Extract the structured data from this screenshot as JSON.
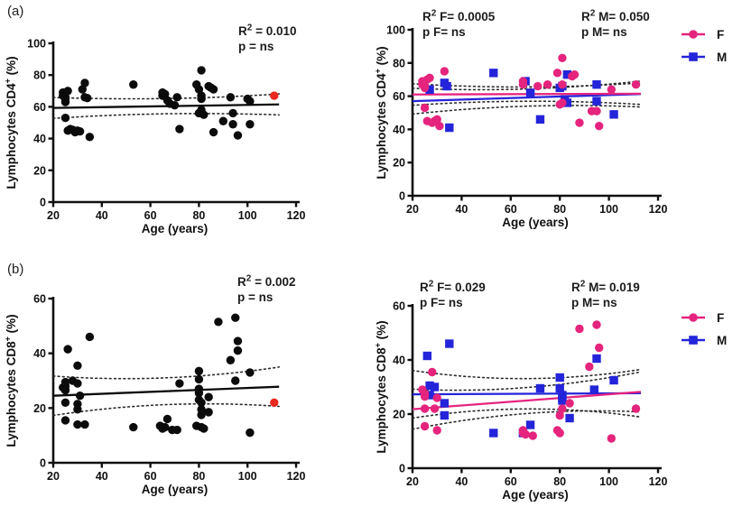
{
  "figure": {
    "panel_a_label": "(a)",
    "panel_b_label": "(b)",
    "colors": {
      "black": "#0b0b0b",
      "red": "#e9281e",
      "female": "#e5247e",
      "male": "#2424da",
      "band": "#2b2b2b",
      "axis": "#101010"
    },
    "legend": {
      "f_label": "F",
      "m_label": "M"
    }
  },
  "chart_data": [
    {
      "id": "cd4-all",
      "type": "scatter",
      "panel": "a",
      "xlabel": "Age (years)",
      "ylabel": {
        "main": "Lymphocytes CD4",
        "sup": "+",
        "rest": " (%)"
      },
      "xlim": [
        20,
        120
      ],
      "ylim": [
        0,
        100
      ],
      "xticks": [
        20,
        40,
        60,
        80,
        100,
        120
      ],
      "yticks": [
        0,
        20,
        40,
        60,
        80,
        100
      ],
      "grid": false,
      "annotations": [
        {
          "r2_pre": "R",
          "r2_sup": "2",
          "r2_rest": " = 0.010",
          "p_text": "p = ns"
        }
      ],
      "series": [
        {
          "name": "all-subjects",
          "marker": "circle",
          "color_key": "black",
          "points": [
            [
              24,
              69
            ],
            [
              24,
              67
            ],
            [
              25,
              66
            ],
            [
              25,
              65
            ],
            [
              25,
              63
            ],
            [
              25,
              53
            ],
            [
              26,
              70
            ],
            [
              26,
              45
            ],
            [
              27,
              46
            ],
            [
              28,
              45.5
            ],
            [
              29,
              44
            ],
            [
              30,
              45
            ],
            [
              31,
              44.5
            ],
            [
              32,
              71
            ],
            [
              33,
              75
            ],
            [
              33,
              66
            ],
            [
              34,
              65.5
            ],
            [
              35,
              41
            ],
            [
              53,
              74
            ],
            [
              65,
              69
            ],
            [
              65,
              67
            ],
            [
              66,
              68
            ],
            [
              67,
              64
            ],
            [
              68,
              62
            ],
            [
              70,
              61
            ],
            [
              71,
              66
            ],
            [
              72,
              46
            ],
            [
              79,
              74
            ],
            [
              80,
              71
            ],
            [
              80,
              56
            ],
            [
              81,
              83
            ],
            [
              81,
              67
            ],
            [
              81,
              65
            ],
            [
              81,
              58
            ],
            [
              82,
              55
            ],
            [
              84,
              73
            ],
            [
              85,
              72
            ],
            [
              86,
              71
            ],
            [
              86,
              44
            ],
            [
              90,
              51
            ],
            [
              93,
              66
            ],
            [
              94,
              56
            ],
            [
              94,
              49
            ],
            [
              96,
              42
            ],
            [
              100,
              65
            ],
            [
              101,
              63.5
            ],
            [
              101,
              49
            ]
          ]
        },
        {
          "name": "oldest-highlight",
          "marker": "circle",
          "color_key": "red",
          "points": [
            [
              111,
              67
            ]
          ]
        }
      ],
      "fits": [
        {
          "color_key": "black",
          "x0": 20,
          "x1": 113,
          "y0": 59.3,
          "y1": 61.5,
          "band_a": 4.8,
          "band_b": 1.8
        }
      ],
      "legend": false
    },
    {
      "id": "cd4-by-sex",
      "type": "scatter",
      "panel": "a",
      "xlabel": "Age (years)",
      "ylabel": {
        "main": "Lymphocytes CD4",
        "sup": "+",
        "rest": " (%)"
      },
      "xlim": [
        20,
        120
      ],
      "ylim": [
        0,
        100
      ],
      "xticks": [
        20,
        40,
        60,
        80,
        100,
        120
      ],
      "yticks": [
        0,
        20,
        40,
        60,
        80,
        100
      ],
      "grid": false,
      "annotations": [
        {
          "r2_pre": "R",
          "r2_sup": "2",
          "r2_rest": " F= 0.0005",
          "p_text": "p F= ns"
        },
        {
          "r2_pre": "R",
          "r2_sup": "2",
          "r2_rest": " M= 0.050",
          "p_text": "p M= ns"
        }
      ],
      "series": [
        {
          "name": "male",
          "marker": "square",
          "color_key": "male",
          "points": [
            [
              27,
              64
            ],
            [
              33,
              68
            ],
            [
              34,
              66
            ],
            [
              35,
              41
            ],
            [
              53,
              74
            ],
            [
              66,
              69
            ],
            [
              68,
              62
            ],
            [
              72,
              46
            ],
            [
              80,
              65
            ],
            [
              81,
              66
            ],
            [
              82,
              58
            ],
            [
              83,
              56
            ],
            [
              83,
              73
            ],
            [
              95,
              67
            ],
            [
              95,
              57
            ],
            [
              102,
              49
            ]
          ]
        },
        {
          "name": "female",
          "marker": "circle",
          "color_key": "female",
          "points": [
            [
              24,
              69
            ],
            [
              24,
              67
            ],
            [
              25,
              66
            ],
            [
              25,
              65
            ],
            [
              25,
              53
            ],
            [
              26,
              70
            ],
            [
              27,
              71
            ],
            [
              26,
              45
            ],
            [
              28,
              44
            ],
            [
              29,
              45
            ],
            [
              30,
              46
            ],
            [
              31,
              42
            ],
            [
              33,
              75
            ],
            [
              65,
              69
            ],
            [
              65,
              67
            ],
            [
              71,
              66
            ],
            [
              75,
              67
            ],
            [
              79,
              74
            ],
            [
              81,
              83
            ],
            [
              81,
              67
            ],
            [
              80,
              55
            ],
            [
              81,
              56
            ],
            [
              85,
              72
            ],
            [
              86,
              73
            ],
            [
              88,
              44
            ],
            [
              93,
              51
            ],
            [
              95,
              51
            ],
            [
              96,
              42
            ],
            [
              101,
              64
            ],
            [
              111,
              67
            ]
          ]
        }
      ],
      "fits": [
        {
          "color_key": "male",
          "x0": 20,
          "x1": 113,
          "y0": 57.0,
          "y1": 61.3,
          "band_a": 5.2,
          "band_b": 2.6
        },
        {
          "color_key": "female",
          "x0": 20,
          "x1": 113,
          "y0": 61.0,
          "y1": 61.5,
          "band_a": 4.3,
          "band_b": 2.2
        }
      ],
      "legend": true
    },
    {
      "id": "cd8-all",
      "type": "scatter",
      "panel": "b",
      "xlabel": "Age (years)",
      "ylabel": {
        "main": "Lymphocytes CD8",
        "sup": "+",
        "rest": " (%)"
      },
      "xlim": [
        20,
        120
      ],
      "ylim": [
        0,
        60
      ],
      "xticks": [
        20,
        40,
        60,
        80,
        100,
        120
      ],
      "yticks": [
        0,
        20,
        40,
        60
      ],
      "grid": false,
      "annotations": [
        {
          "r2_pre": "R",
          "r2_sup": "2",
          "r2_rest": " = 0.002",
          "p_text": "p = ns"
        }
      ],
      "series": [
        {
          "name": "all-subjects",
          "marker": "circle",
          "color_key": "black",
          "points": [
            [
              24,
              27.5
            ],
            [
              25,
              29.5
            ],
            [
              25,
              28
            ],
            [
              25,
              26.5
            ],
            [
              25,
              22
            ],
            [
              25,
              15.5
            ],
            [
              26,
              41.5
            ],
            [
              28,
              30
            ],
            [
              30,
              35.5
            ],
            [
              30,
              29
            ],
            [
              30,
              21.5
            ],
            [
              30,
              19.5
            ],
            [
              30,
              14
            ],
            [
              31,
              24.5
            ],
            [
              33,
              14
            ],
            [
              35,
              46
            ],
            [
              53,
              13
            ],
            [
              64,
              13.5
            ],
            [
              65,
              12.5
            ],
            [
              66,
              13
            ],
            [
              67,
              16
            ],
            [
              69,
              12
            ],
            [
              71,
              12
            ],
            [
              72,
              29
            ],
            [
              79,
              13.5
            ],
            [
              80,
              33.5
            ],
            [
              80,
              30.5
            ],
            [
              80,
              27
            ],
            [
              80,
              25.5
            ],
            [
              80,
              23
            ],
            [
              81,
              22
            ],
            [
              81,
              19.5
            ],
            [
              81,
              17.5
            ],
            [
              81,
              13
            ],
            [
              82,
              12.5
            ],
            [
              84,
              24
            ],
            [
              84,
              18.5
            ],
            [
              88,
              51.5
            ],
            [
              93,
              37.5
            ],
            [
              95,
              53
            ],
            [
              95,
              30
            ],
            [
              96,
              44.5
            ],
            [
              96,
              41
            ],
            [
              101,
              33
            ],
            [
              101,
              11
            ]
          ]
        },
        {
          "name": "oldest-highlight",
          "marker": "circle",
          "color_key": "red",
          "points": [
            [
              111,
              22
            ]
          ]
        }
      ],
      "fits": [
        {
          "color_key": "black",
          "x0": 20,
          "x1": 113,
          "y0": 24.5,
          "y1": 27.8,
          "band_a": 4.9,
          "band_b": 2.3
        }
      ],
      "legend": false
    },
    {
      "id": "cd8-by-sex",
      "type": "scatter",
      "panel": "b",
      "xlabel": "Age (years)",
      "ylabel": {
        "main": "Lymphocytes CD8",
        "sup": "+",
        "rest": " (%)"
      },
      "xlim": [
        20,
        120
      ],
      "ylim": [
        0,
        60
      ],
      "xticks": [
        20,
        40,
        60,
        80,
        100,
        120
      ],
      "yticks": [
        0,
        20,
        40,
        60
      ],
      "grid": false,
      "annotations": [
        {
          "r2_pre": "R",
          "r2_sup": "2",
          "r2_rest": " F= 0.029",
          "p_text": "p F= ns"
        },
        {
          "r2_pre": "R",
          "r2_sup": "2",
          "r2_rest": " M= 0.019",
          "p_text": "p M= ns"
        }
      ],
      "series": [
        {
          "name": "male",
          "marker": "square",
          "color_key": "male",
          "points": [
            [
              26,
              41.5
            ],
            [
              27,
              30.5
            ],
            [
              27,
              27
            ],
            [
              29,
              30
            ],
            [
              33,
              24
            ],
            [
              33,
              19.5
            ],
            [
              35,
              46
            ],
            [
              53,
              13
            ],
            [
              65,
              13
            ],
            [
              68,
              16
            ],
            [
              72,
              29.5
            ],
            [
              80,
              33.5
            ],
            [
              80,
              29.5
            ],
            [
              81,
              27
            ],
            [
              81,
              26
            ],
            [
              81,
              25
            ],
            [
              84,
              18.5
            ],
            [
              94,
              29
            ],
            [
              95,
              40.5
            ],
            [
              102,
              32.5
            ]
          ]
        },
        {
          "name": "female",
          "marker": "circle",
          "color_key": "female",
          "points": [
            [
              24,
              29
            ],
            [
              25,
              27.5
            ],
            [
              25,
              26.5
            ],
            [
              25,
              22
            ],
            [
              25,
              15.5
            ],
            [
              28,
              35.5
            ],
            [
              29,
              22
            ],
            [
              30,
              26
            ],
            [
              30,
              14
            ],
            [
              65,
              14
            ],
            [
              65,
              13
            ],
            [
              66,
              12.5
            ],
            [
              69,
              12
            ],
            [
              79,
              14
            ],
            [
              80,
              13
            ],
            [
              80,
              19.5
            ],
            [
              81,
              22
            ],
            [
              84,
              24
            ],
            [
              88,
              51.5
            ],
            [
              92,
              37.5
            ],
            [
              95,
              53
            ],
            [
              96,
              44.5
            ],
            [
              101,
              11
            ],
            [
              111,
              22
            ]
          ]
        }
      ],
      "fits": [
        {
          "color_key": "male",
          "x0": 20,
          "x1": 113,
          "y0": 27.3,
          "y1": 27.7,
          "band_a": 5.6,
          "band_b": 3.2
        },
        {
          "color_key": "female",
          "x0": 20,
          "x1": 113,
          "y0": 21.8,
          "y1": 28.2,
          "band_a": 4.8,
          "band_b": 2.6
        }
      ],
      "legend": true
    }
  ]
}
